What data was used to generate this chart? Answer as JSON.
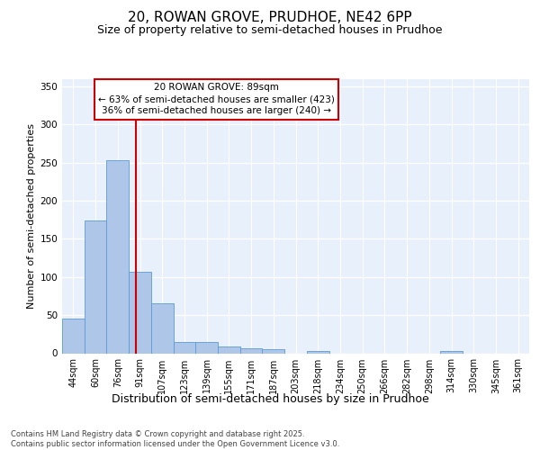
{
  "title1": "20, ROWAN GROVE, PRUDHOE, NE42 6PP",
  "title2": "Size of property relative to semi-detached houses in Prudhoe",
  "xlabel": "Distribution of semi-detached houses by size in Prudhoe",
  "ylabel": "Number of semi-detached properties",
  "categories": [
    "44sqm",
    "60sqm",
    "76sqm",
    "91sqm",
    "107sqm",
    "123sqm",
    "139sqm",
    "155sqm",
    "171sqm",
    "187sqm",
    "203sqm",
    "218sqm",
    "234sqm",
    "250sqm",
    "266sqm",
    "282sqm",
    "298sqm",
    "314sqm",
    "330sqm",
    "345sqm",
    "361sqm"
  ],
  "values": [
    45,
    174,
    253,
    107,
    65,
    15,
    15,
    9,
    7,
    5,
    0,
    3,
    0,
    0,
    0,
    0,
    0,
    3,
    0,
    0,
    0
  ],
  "bar_color": "#aec6e8",
  "bar_edge_color": "#5b9bd5",
  "vline_x": 2.82,
  "vline_color": "#cc0000",
  "annotation_box_text": "20 ROWAN GROVE: 89sqm\n← 63% of semi-detached houses are smaller (423)\n36% of semi-detached houses are larger (240) →",
  "annotation_box_color": "#cc0000",
  "annotation_text_color": "#000000",
  "ylim": [
    0,
    360
  ],
  "yticks": [
    0,
    50,
    100,
    150,
    200,
    250,
    300,
    350
  ],
  "background_color": "#e8f0fb",
  "grid_color": "#ffffff",
  "footer_line1": "Contains HM Land Registry data © Crown copyright and database right 2025.",
  "footer_line2": "Contains public sector information licensed under the Open Government Licence v3.0.",
  "title1_fontsize": 11,
  "title2_fontsize": 9,
  "xlabel_fontsize": 9,
  "ylabel_fontsize": 8,
  "tick_fontsize": 7,
  "annot_fontsize": 7.5,
  "footer_fontsize": 6
}
